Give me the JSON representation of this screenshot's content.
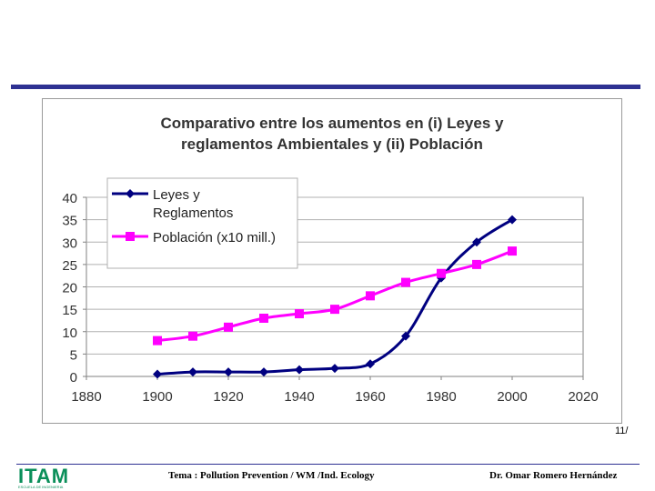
{
  "slide": {
    "number": "11/",
    "footer_topic": "Tema : Pollution Prevention / WM /Ind. Ecology",
    "footer_author": "Dr. Omar Romero Hernández",
    "logo_text": "ITAM",
    "logo_subtext": "ESCUELA DE INGENIERIA"
  },
  "colors": {
    "accent": "#2e3192",
    "series1": "#000080",
    "series2": "#ff00ff",
    "logo": "#0a8f5a"
  },
  "chart_data": {
    "type": "line",
    "title": "Comparativo entre los aumentos en (i) Leyes y reglamentos Ambientales y (ii) Población",
    "title_lines": [
      "Comparativo entre los aumentos en (i) Leyes y",
      "reglamentos Ambientales y (ii) Población"
    ],
    "xlabel": "",
    "ylabel": "",
    "xlim": [
      1880,
      2020
    ],
    "ylim": [
      0,
      40
    ],
    "x_ticks": [
      1880,
      1900,
      1920,
      1940,
      1960,
      1980,
      2000,
      2020
    ],
    "y_ticks": [
      0,
      5,
      10,
      15,
      20,
      25,
      30,
      35,
      40
    ],
    "grid": true,
    "legend_position": "top-left",
    "series": [
      {
        "name": "Leyes y Reglamentos",
        "legend_lines": [
          "Leyes y",
          "Reglamentos"
        ],
        "marker": "diamond",
        "x": [
          1900,
          1910,
          1920,
          1930,
          1940,
          1950,
          1960,
          1970,
          1980,
          1990,
          2000
        ],
        "values": [
          0.5,
          1,
          1,
          1,
          1.5,
          1.8,
          2.8,
          9,
          22,
          30,
          35
        ]
      },
      {
        "name": "Población (x10 mill.)",
        "legend_lines": [
          "Población (x10 mill.)"
        ],
        "marker": "square",
        "x": [
          1900,
          1910,
          1920,
          1930,
          1940,
          1950,
          1960,
          1970,
          1980,
          1990,
          2000
        ],
        "values": [
          8,
          9,
          11,
          13,
          14,
          15,
          18,
          21,
          23,
          25,
          28
        ]
      }
    ]
  }
}
